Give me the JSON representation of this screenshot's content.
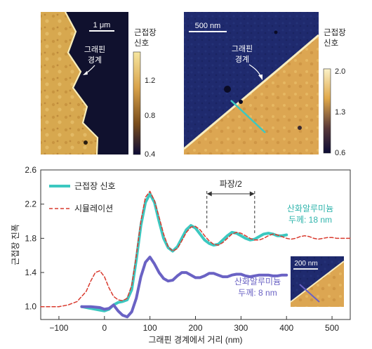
{
  "panels": {
    "left": {
      "scalebar": "1 μm",
      "boundary_label_line1": "그래핀",
      "boundary_label_line2": "경계",
      "colorbar_title_line1": "근접장",
      "colorbar_title_line2": "신호",
      "colorbar_ticks": [
        "1.2",
        "0.8",
        "0.4"
      ],
      "colors": {
        "low": "#0b0b35",
        "mid": "#a0782a",
        "high": "#f6e6a0"
      }
    },
    "right": {
      "scalebar": "500 nm",
      "boundary_label_line1": "그래핀",
      "boundary_label_line2": "경계",
      "colorbar_title_line1": "근접장",
      "colorbar_title_line2": "신호",
      "colorbar_ticks": [
        "2.0",
        "1.3",
        "0.6"
      ],
      "line_cut_color": "#3cc8c0"
    },
    "inset": {
      "scalebar": "200 nm"
    }
  },
  "chart_data": {
    "type": "line",
    "xlabel": "그래핀 경계에서 거리 (nm)",
    "ylabel": "근접장 진폭",
    "xlim": [
      -140,
      540
    ],
    "ylim": [
      0.85,
      2.6
    ],
    "xticks": [
      -100,
      0,
      100,
      200,
      300,
      400,
      500
    ],
    "yticks": [
      1.0,
      1.4,
      1.8,
      2.2,
      2.6
    ],
    "legend_position": "top-left",
    "series": [
      {
        "name": "근접장 신호",
        "color": "#3cc8c0",
        "style": "solid",
        "x": [
          -50,
          -30,
          -10,
          0,
          10,
          20,
          30,
          40,
          50,
          60,
          70,
          80,
          90,
          100,
          110,
          120,
          130,
          140,
          150,
          160,
          170,
          180,
          190,
          200,
          210,
          220,
          230,
          240,
          250,
          260,
          270,
          280,
          290,
          300,
          310,
          320,
          330,
          340,
          350,
          360,
          370,
          380,
          390,
          400
        ],
        "y": [
          1.0,
          0.98,
          0.96,
          0.95,
          0.97,
          1.02,
          1.05,
          1.06,
          1.08,
          1.2,
          1.55,
          1.95,
          2.22,
          2.32,
          2.22,
          2.0,
          1.8,
          1.69,
          1.65,
          1.7,
          1.8,
          1.9,
          1.95,
          1.92,
          1.85,
          1.78,
          1.74,
          1.72,
          1.73,
          1.78,
          1.83,
          1.87,
          1.86,
          1.83,
          1.8,
          1.78,
          1.79,
          1.82,
          1.85,
          1.86,
          1.85,
          1.83,
          1.83,
          1.84
        ]
      },
      {
        "name": "시뮬레이션",
        "color": "#d93a2e",
        "style": "dashed",
        "x": [
          -140,
          -120,
          -100,
          -80,
          -60,
          -40,
          -30,
          -20,
          -10,
          0,
          10,
          20,
          30,
          40,
          50,
          60,
          70,
          80,
          90,
          100,
          110,
          120,
          130,
          140,
          150,
          160,
          170,
          180,
          190,
          200,
          210,
          220,
          230,
          240,
          250,
          260,
          270,
          280,
          290,
          300,
          310,
          320,
          330,
          340,
          350,
          360,
          370,
          380,
          390,
          400,
          410,
          420,
          430,
          440,
          450,
          460,
          470,
          480,
          490,
          500,
          510,
          520,
          540
        ],
        "y": [
          1.0,
          1.0,
          1.0,
          1.02,
          1.06,
          1.18,
          1.3,
          1.4,
          1.42,
          1.35,
          1.22,
          1.12,
          1.08,
          1.07,
          1.1,
          1.25,
          1.6,
          2.0,
          2.28,
          2.35,
          2.24,
          2.05,
          1.85,
          1.7,
          1.65,
          1.68,
          1.77,
          1.87,
          1.93,
          1.94,
          1.9,
          1.83,
          1.77,
          1.73,
          1.72,
          1.75,
          1.8,
          1.85,
          1.87,
          1.86,
          1.83,
          1.8,
          1.78,
          1.78,
          1.8,
          1.83,
          1.85,
          1.84,
          1.82,
          1.8,
          1.79,
          1.8,
          1.82,
          1.83,
          1.82,
          1.8,
          1.79,
          1.8,
          1.81,
          1.81,
          1.8,
          1.8,
          1.8
        ]
      },
      {
        "name": "",
        "color": "#6a62c4",
        "style": "solid",
        "x": [
          -50,
          -30,
          -10,
          0,
          10,
          20,
          30,
          40,
          50,
          60,
          70,
          80,
          90,
          100,
          110,
          120,
          130,
          140,
          150,
          160,
          170,
          180,
          190,
          200,
          210,
          220,
          230,
          240,
          250,
          260,
          270,
          280,
          290,
          300,
          310,
          320,
          330,
          340,
          350,
          360,
          370,
          380,
          390,
          400
        ],
        "y": [
          1.0,
          1.0,
          0.99,
          0.97,
          0.98,
          1.02,
          0.95,
          0.9,
          0.88,
          0.94,
          1.1,
          1.35,
          1.52,
          1.58,
          1.5,
          1.4,
          1.33,
          1.3,
          1.31,
          1.36,
          1.4,
          1.4,
          1.37,
          1.34,
          1.34,
          1.36,
          1.39,
          1.39,
          1.37,
          1.35,
          1.35,
          1.37,
          1.38,
          1.38,
          1.36,
          1.35,
          1.36,
          1.37,
          1.37,
          1.37,
          1.36,
          1.36,
          1.37,
          1.37
        ]
      }
    ],
    "annotations": {
      "half_wavelength": "파장/2",
      "half_wavelength_from": 225,
      "half_wavelength_to": 330,
      "thick_line1": "산화알루미늄",
      "thick_line2": "두께: 18 nm",
      "thin_line1": "산화알루미늄",
      "thin_line2": "두께: 8 nm"
    }
  }
}
